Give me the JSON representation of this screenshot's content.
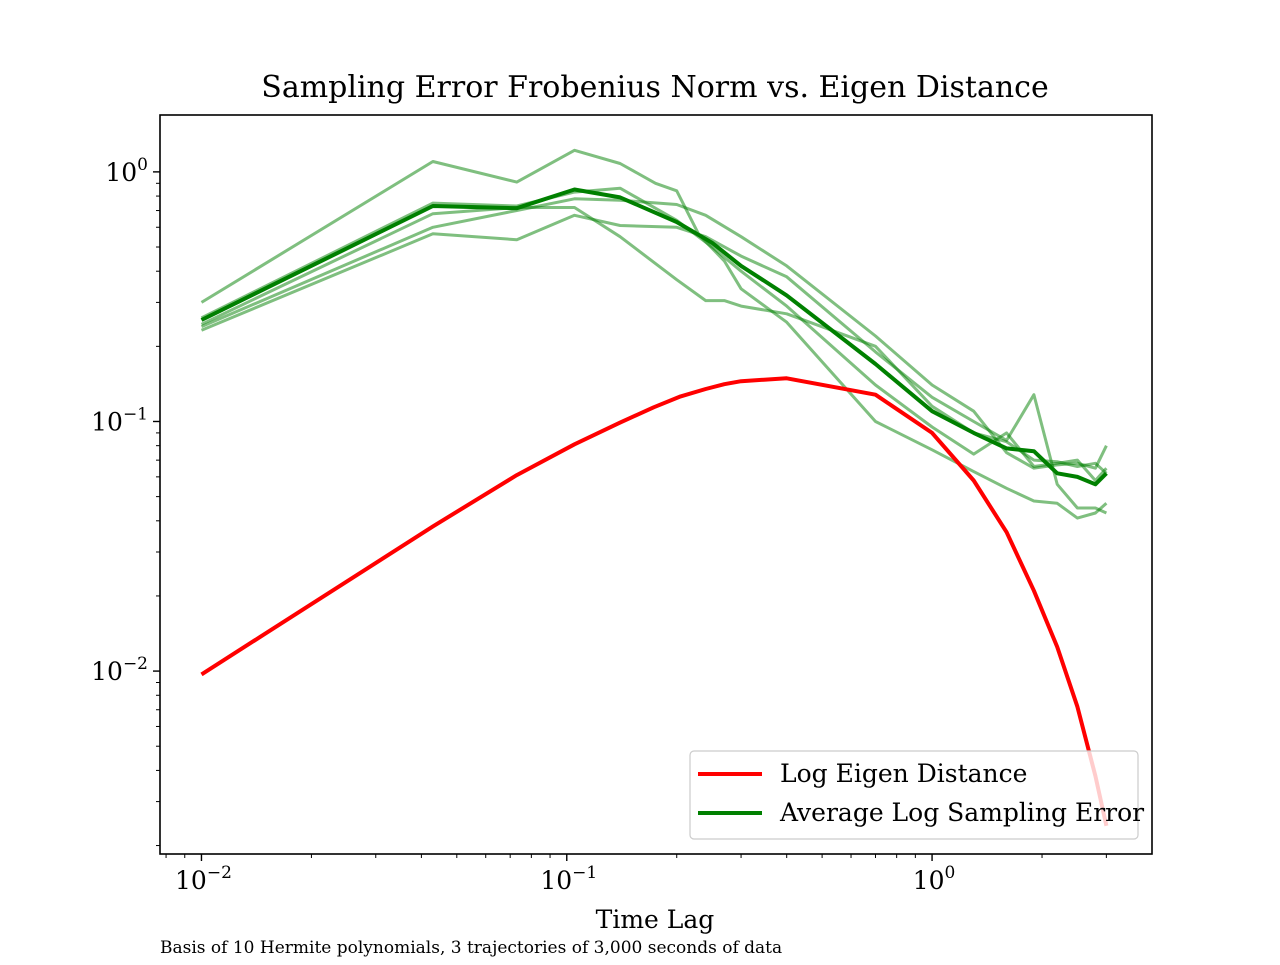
{
  "chart_data": {
    "type": "line",
    "title": "Sampling Error Frobenius Norm vs. Eigen Distance",
    "xlabel": "Time Lag",
    "ylabel": "",
    "caption": "Basis of 10 Hermite polynomials, 3 trajectories of 3,000 seconds of data",
    "xscale": "log",
    "yscale": "log",
    "xlim": [
      0.0077,
      4.0
    ],
    "ylim": [
      0.00185,
      1.69
    ],
    "grid": false,
    "legend_position": "lower-right",
    "x_ticks": [
      {
        "value": 0.01,
        "base": "10",
        "exp": "−2"
      },
      {
        "value": 0.1,
        "base": "10",
        "exp": "−1"
      },
      {
        "value": 1,
        "base": "10",
        "exp": "0"
      }
    ],
    "y_ticks": [
      {
        "value": 0.01,
        "base": "10",
        "exp": "−2"
      },
      {
        "value": 0.1,
        "base": "10",
        "exp": "−1"
      },
      {
        "value": 1,
        "base": "10",
        "exp": "0"
      }
    ],
    "colors": {
      "eigen": "#ff0000",
      "average": "#008000",
      "trajectory": "#008000"
    },
    "series": [
      {
        "name": "Log Eigen Distance",
        "role": "eigen",
        "x": [
          0.01,
          0.043,
          0.073,
          0.105,
          0.14,
          0.173,
          0.205,
          0.24,
          0.27,
          0.3,
          0.4,
          0.7,
          1.0,
          1.3,
          1.6,
          1.9,
          2.2,
          2.5,
          2.8,
          3.0
        ],
        "y": [
          0.0097,
          0.038,
          0.061,
          0.081,
          0.099,
          0.114,
          0.126,
          0.135,
          0.141,
          0.145,
          0.149,
          0.128,
          0.09,
          0.058,
          0.036,
          0.021,
          0.0125,
          0.0072,
          0.0038,
          0.0024
        ]
      },
      {
        "name": "Average Log Sampling Error",
        "role": "average",
        "x": [
          0.01,
          0.043,
          0.073,
          0.105,
          0.14,
          0.2,
          0.25,
          0.3,
          0.4,
          0.7,
          1.0,
          1.3,
          1.6,
          1.9,
          2.2,
          2.5,
          2.8,
          3.0
        ],
        "y": [
          0.255,
          0.73,
          0.715,
          0.85,
          0.79,
          0.63,
          0.52,
          0.42,
          0.32,
          0.17,
          0.11,
          0.09,
          0.078,
          0.076,
          0.062,
          0.06,
          0.056,
          0.062
        ]
      },
      {
        "role": "trajectory",
        "x": [
          0.01,
          0.043,
          0.073,
          0.105,
          0.14,
          0.175,
          0.2,
          0.23,
          0.27,
          0.3,
          0.4,
          0.7,
          1.0,
          1.3,
          1.6,
          1.9,
          2.2,
          2.5,
          2.8,
          3.0
        ],
        "y": [
          0.3,
          1.1,
          0.91,
          1.22,
          1.08,
          0.9,
          0.84,
          0.56,
          0.44,
          0.34,
          0.25,
          0.1,
          0.077,
          0.063,
          0.054,
          0.048,
          0.047,
          0.041,
          0.043,
          0.047
        ]
      },
      {
        "role": "trajectory",
        "x": [
          0.01,
          0.043,
          0.073,
          0.105,
          0.14,
          0.2,
          0.24,
          0.27,
          0.3,
          0.4,
          0.7,
          1.0,
          1.3,
          1.6,
          1.9,
          2.2,
          2.5,
          2.8,
          3.0
        ],
        "y": [
          0.245,
          0.68,
          0.72,
          0.72,
          0.55,
          0.37,
          0.305,
          0.305,
          0.29,
          0.27,
          0.2,
          0.115,
          0.09,
          0.083,
          0.07,
          0.069,
          0.066,
          0.068,
          0.062
        ]
      },
      {
        "role": "trajectory",
        "x": [
          0.01,
          0.043,
          0.073,
          0.105,
          0.14,
          0.2,
          0.24,
          0.3,
          0.4,
          0.7,
          1.0,
          1.3,
          1.6,
          1.9,
          2.2,
          2.5,
          2.8,
          3.0
        ],
        "y": [
          0.24,
          0.6,
          0.7,
          0.78,
          0.77,
          0.74,
          0.67,
          0.55,
          0.42,
          0.22,
          0.14,
          0.11,
          0.075,
          0.065,
          0.067,
          0.068,
          0.065,
          0.08
        ]
      },
      {
        "role": "trajectory",
        "x": [
          0.01,
          0.043,
          0.073,
          0.105,
          0.14,
          0.2,
          0.24,
          0.3,
          0.4,
          0.7,
          1.0,
          1.3,
          1.6,
          1.9,
          2.2,
          2.5,
          2.8,
          3.0
        ],
        "y": [
          0.232,
          0.565,
          0.535,
          0.67,
          0.61,
          0.6,
          0.55,
          0.46,
          0.38,
          0.19,
          0.125,
          0.1,
          0.084,
          0.128,
          0.056,
          0.045,
          0.045,
          0.043
        ]
      },
      {
        "role": "trajectory",
        "x": [
          0.01,
          0.043,
          0.073,
          0.105,
          0.14,
          0.2,
          0.25,
          0.3,
          0.4,
          0.7,
          1.0,
          1.3,
          1.6,
          1.9,
          2.2,
          2.5,
          2.8,
          3.0
        ],
        "y": [
          0.26,
          0.75,
          0.73,
          0.83,
          0.86,
          0.64,
          0.5,
          0.4,
          0.29,
          0.14,
          0.095,
          0.074,
          0.09,
          0.066,
          0.068,
          0.07,
          0.058,
          0.065
        ]
      }
    ]
  }
}
